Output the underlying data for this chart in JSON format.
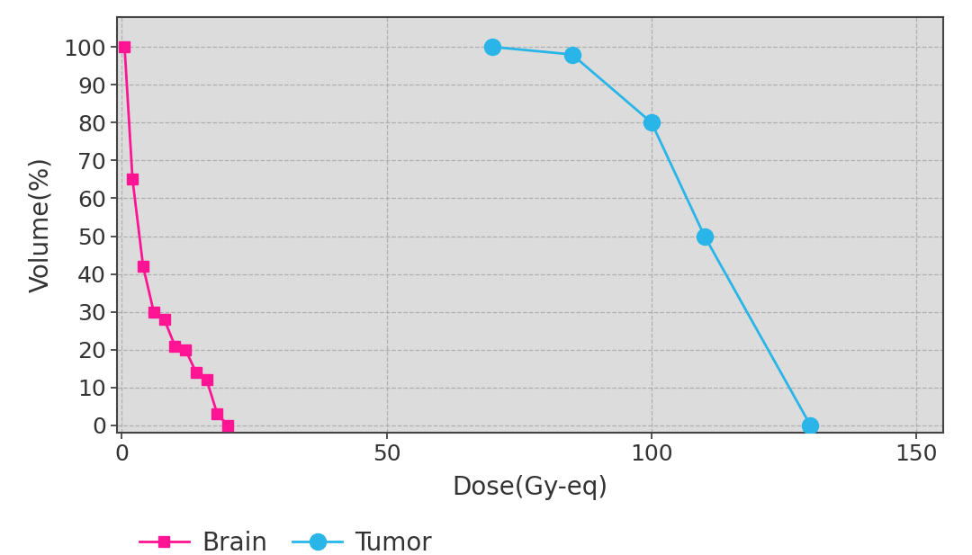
{
  "brain_x": [
    0.5,
    2,
    4,
    6,
    8,
    10,
    12,
    14,
    16,
    18,
    20
  ],
  "brain_y": [
    100,
    65,
    42,
    30,
    28,
    21,
    20,
    14,
    12,
    3,
    0
  ],
  "tumor_x": [
    70,
    85,
    100,
    110,
    130
  ],
  "tumor_y": [
    100,
    98,
    80,
    50,
    0
  ],
  "brain_color": "#FF1493",
  "tumor_color": "#29B5E8",
  "brain_label": "Brain",
  "tumor_label": "Tumor",
  "xlabel": "Dose(Gy-eq)",
  "ylabel": "Volume(%)",
  "xlim": [
    -1,
    155
  ],
  "ylim": [
    -2,
    108
  ],
  "xticks": [
    0,
    50,
    100,
    150
  ],
  "yticks": [
    0,
    10,
    20,
    30,
    40,
    50,
    60,
    70,
    80,
    90,
    100
  ],
  "bg_color": "#DCDCDC",
  "fig_bg_color": "#FFFFFF",
  "brain_marker": "s",
  "tumor_marker": "o",
  "brain_markersize": 9,
  "tumor_markersize": 13,
  "line_width": 2.0,
  "xlabel_fontsize": 20,
  "ylabel_fontsize": 20,
  "tick_fontsize": 18,
  "legend_fontsize": 20,
  "tick_color": "#333333",
  "label_color": "#333333",
  "grid_color": "#AAAAAA",
  "grid_alpha": 0.9,
  "spine_color": "#444444"
}
